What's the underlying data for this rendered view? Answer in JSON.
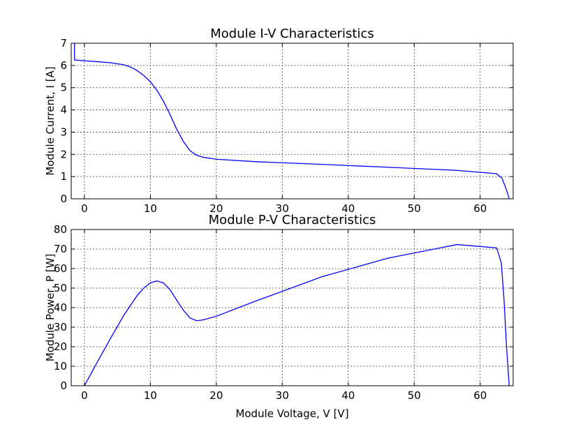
{
  "chart_data": [
    {
      "type": "line",
      "title": "Module I-V Characteristics",
      "xlabel": "",
      "ylabel": "Module Current, I [A]",
      "xlim": [
        -2,
        65
      ],
      "ylim": [
        0,
        7
      ],
      "xticks": [
        0,
        10,
        20,
        30,
        40,
        50,
        60
      ],
      "yticks": [
        0,
        1,
        2,
        3,
        4,
        5,
        6,
        7
      ],
      "grid": true,
      "series": [
        {
          "color": "#0000ff",
          "x": [
            -1.5,
            -1.5,
            0,
            2,
            4,
            6,
            7,
            8,
            9,
            10,
            11,
            12,
            13,
            14,
            15,
            16,
            17,
            18,
            20,
            26,
            36,
            46,
            56.5,
            62.5,
            63.3,
            63.8,
            64.1,
            64.4
          ],
          "y": [
            7,
            6.25,
            6.21,
            6.17,
            6.12,
            6.03,
            5.93,
            5.77,
            5.55,
            5.27,
            4.88,
            4.38,
            3.78,
            3.13,
            2.58,
            2.17,
            1.96,
            1.87,
            1.78,
            1.67,
            1.55,
            1.42,
            1.28,
            1.13,
            0.93,
            0.55,
            0.3,
            0
          ]
        }
      ]
    },
    {
      "type": "line",
      "title": "Module P-V Characteristics",
      "xlabel": "Module Voltage, V [V]",
      "ylabel": "Module Power, P [W]",
      "xlim": [
        -2,
        65
      ],
      "ylim": [
        0,
        80
      ],
      "xticks": [
        0,
        10,
        20,
        30,
        40,
        50,
        60
      ],
      "yticks": [
        0,
        10,
        20,
        30,
        40,
        50,
        60,
        70,
        80
      ],
      "grid": true,
      "series": [
        {
          "color": "#0000ff",
          "x": [
            0,
            2,
            4,
            6,
            8,
            9,
            10,
            11,
            12,
            13,
            14,
            15,
            16,
            17,
            18,
            20,
            26,
            36,
            46,
            56.5,
            62.5,
            63.2,
            63.6,
            64.0,
            64.4
          ],
          "y": [
            0,
            12.4,
            24.5,
            36.2,
            46.2,
            50,
            52.7,
            53.7,
            52.6,
            49.1,
            43.8,
            38.7,
            34.7,
            33.3,
            33.7,
            35.6,
            43.4,
            55.8,
            65.3,
            72.3,
            70.6,
            63,
            45,
            20,
            0
          ]
        }
      ]
    }
  ]
}
